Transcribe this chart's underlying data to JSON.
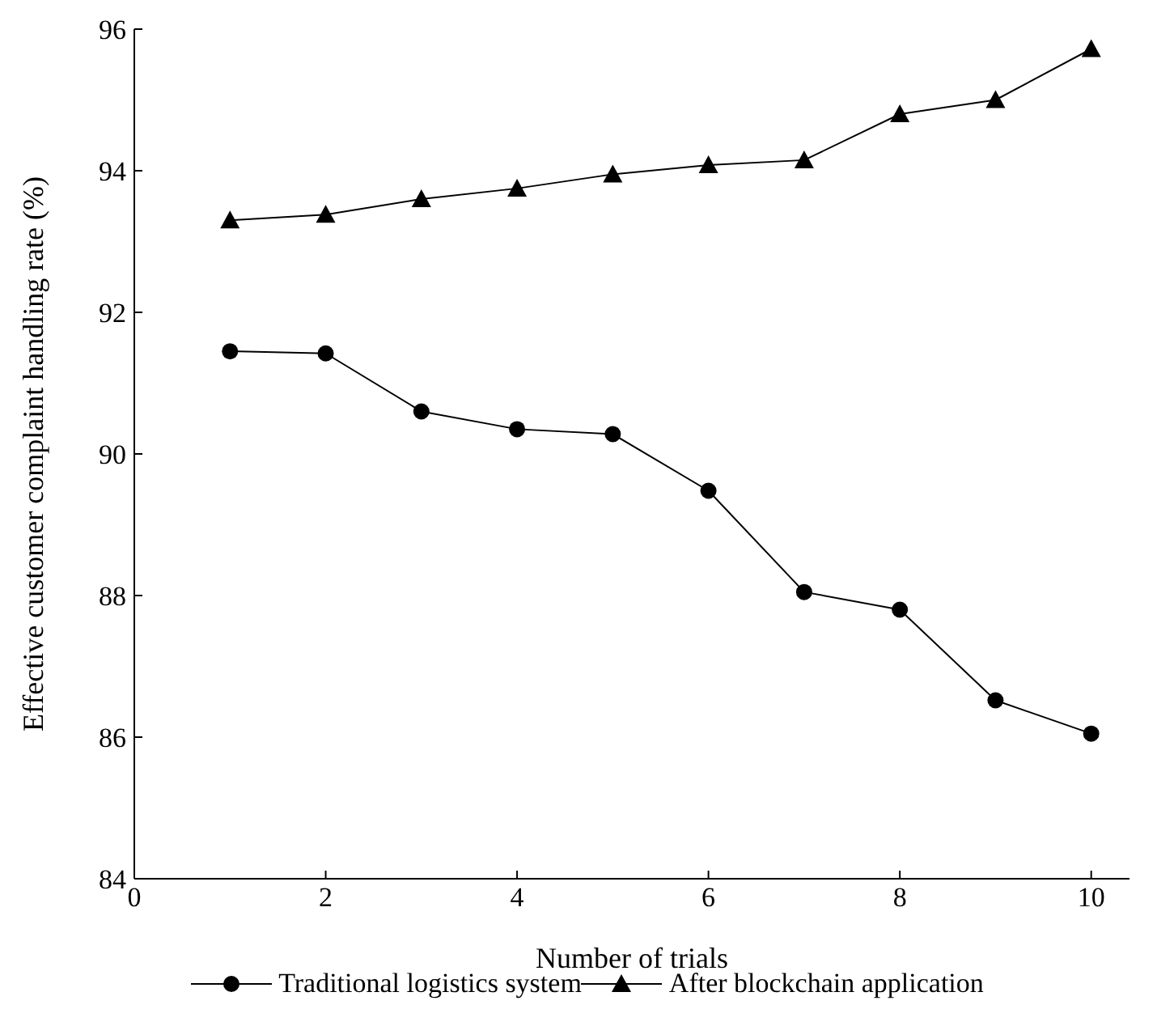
{
  "chart_data": {
    "type": "line",
    "xlabel": "Number of trials",
    "ylabel": "Effective customer complaint handling rate (%)",
    "x": [
      1,
      2,
      3,
      4,
      5,
      6,
      7,
      8,
      9,
      10
    ],
    "series": [
      {
        "name": "Traditional logistics system",
        "color": "#000000",
        "marker": "circle",
        "values": [
          91.45,
          91.42,
          90.6,
          90.35,
          90.28,
          89.48,
          88.05,
          87.8,
          86.52,
          86.05
        ]
      },
      {
        "name": "After blockchain application",
        "color": "#000000",
        "marker": "triangle",
        "values": [
          93.3,
          93.38,
          93.6,
          93.75,
          93.95,
          94.08,
          94.15,
          94.8,
          95.0,
          95.72
        ]
      }
    ],
    "xlim": [
      0,
      10.4
    ],
    "xticks": [
      0,
      2,
      4,
      6,
      8,
      10
    ],
    "ylim": [
      84,
      96
    ],
    "yticks": [
      84,
      86,
      88,
      90,
      92,
      94,
      96
    ],
    "grid": false,
    "legend": "bottom",
    "line_style": "solid"
  }
}
